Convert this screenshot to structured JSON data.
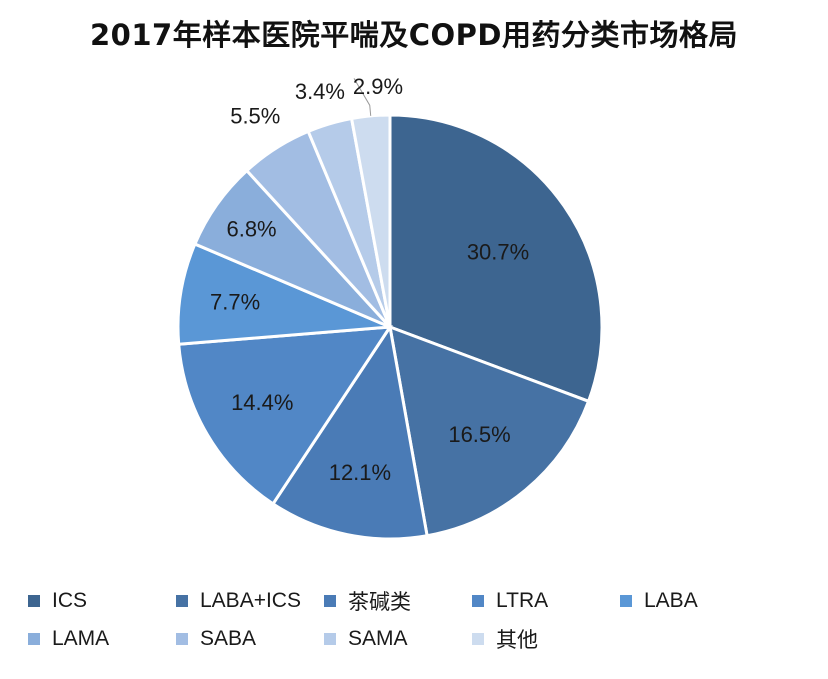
{
  "chart_data": {
    "type": "pie",
    "title": "2017年样本医院平喘及COPD用药分类市场格局",
    "legend_position": "bottom",
    "slices": [
      {
        "name": "ICS",
        "value": 30.7,
        "label": "30.7%",
        "color": "#3d6590"
      },
      {
        "name": "LABA+ICS",
        "value": 16.5,
        "label": "16.5%",
        "color": "#4672a4"
      },
      {
        "name": "茶碱类",
        "value": 12.1,
        "label": "12.1%",
        "color": "#4a7bb6"
      },
      {
        "name": "LTRA",
        "value": 14.4,
        "label": "14.4%",
        "color": "#5187c6"
      },
      {
        "name": "LABA",
        "value": 7.7,
        "label": "7.7%",
        "color": "#5a97d6"
      },
      {
        "name": "LAMA",
        "value": 6.8,
        "label": "6.8%",
        "color": "#8aaedb"
      },
      {
        "name": "SABA",
        "value": 5.5,
        "label": "5.5%",
        "color": "#a2bde3"
      },
      {
        "name": "SAMA",
        "value": 3.4,
        "label": "3.4%",
        "color": "#b5cbe9"
      },
      {
        "name": "其他",
        "value": 2.9,
        "label": "2.9%",
        "color": "#cddcef"
      }
    ]
  }
}
